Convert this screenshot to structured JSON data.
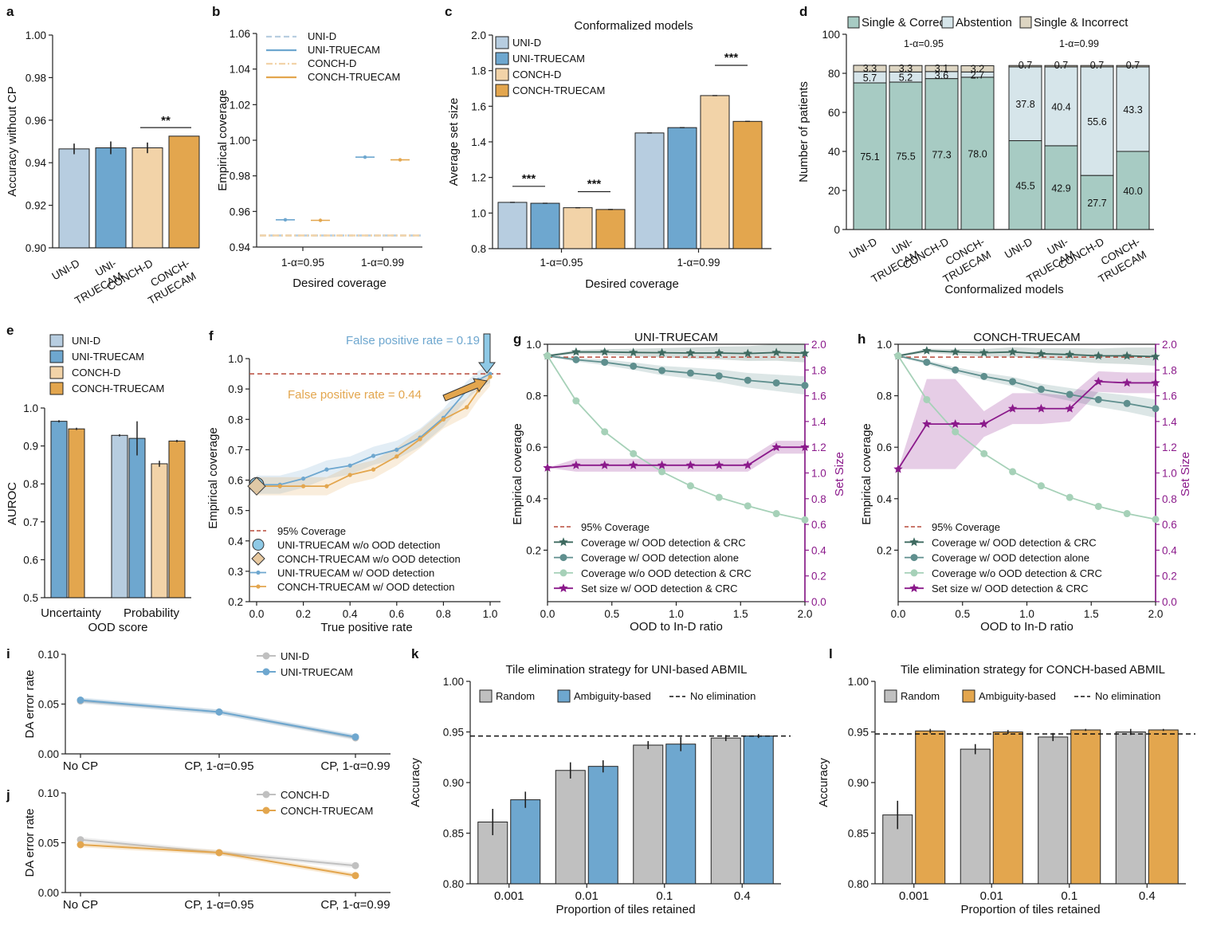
{
  "colors": {
    "uni_d": "#b7cde0",
    "uni_t": "#6ea7cf",
    "conch_d": "#f2d3a8",
    "conch_t": "#e3a64e",
    "sc": "#a7cbc3",
    "abst": "#d6e5ea",
    "si": "#ddd5c2",
    "dark": "#3e6a60",
    "mid": "#5f8f8e",
    "light": "#a6d1b8",
    "purple": "#8b1a8b",
    "red": "#b84a3a",
    "gray": "#c0c0c0",
    "blue": "#6ea7cf",
    "orange": "#e3a64e"
  },
  "chart_data": [
    {
      "id": "a",
      "type": "bar",
      "panel_label": "a",
      "title": "",
      "xlabel": "",
      "ylabel": "Accuracy without CP",
      "ylim": [
        0.9,
        1.0
      ],
      "yticks": [
        "0.90",
        "0.92",
        "0.94",
        "0.96",
        "0.98",
        "1.00"
      ],
      "categories": [
        [
          "UNI-D"
        ],
        [
          "UNI-",
          "TRUECAM"
        ],
        [
          "CONCH-D"
        ],
        [
          "CONCH-",
          "TRUECAM"
        ]
      ],
      "values": [
        0.9465,
        0.947,
        0.947,
        0.9525
      ],
      "errors": [
        0.0025,
        0.003,
        0.0025,
        0.0
      ],
      "bar_colors": [
        "uni_d",
        "uni_t",
        "conch_d",
        "conch_t"
      ],
      "significance": [
        {
          "from": 2,
          "to": 3,
          "label": "**",
          "y": 0.9565
        }
      ]
    },
    {
      "id": "b",
      "type": "dot",
      "panel_label": "b",
      "xlabel": "Desired coverage",
      "ylabel": "Empirical coverage",
      "ylim": [
        0.94,
        1.06
      ],
      "yticks": [
        "0.94",
        "0.96",
        "0.98",
        "1.00",
        "1.02",
        "1.04",
        "1.06"
      ],
      "groups": [
        "1-α=0.95",
        "1-α=0.99"
      ],
      "series": [
        {
          "name": "UNI-D",
          "values": [
            0.9465,
            0.9465
          ],
          "color": "uni_d",
          "style": "dashed"
        },
        {
          "name": "UNI-TRUECAM",
          "values": [
            0.9553,
            0.9905
          ],
          "color": "uni_t",
          "style": "solid"
        },
        {
          "name": "CONCH-D",
          "values": [
            0.9465,
            0.9465
          ],
          "color": "conch_d",
          "style": "dashdot"
        },
        {
          "name": "CONCH-TRUECAM",
          "values": [
            0.955,
            0.989
          ],
          "color": "conch_t",
          "style": "solid"
        }
      ]
    },
    {
      "id": "c",
      "type": "bar",
      "panel_label": "c",
      "title": "Conformalized models",
      "xlabel": "Desired coverage",
      "ylabel": "Average set size",
      "ylim": [
        0.8,
        2.0
      ],
      "yticks": [
        "0.8",
        "1.0",
        "1.2",
        "1.4",
        "1.6",
        "1.8",
        "2.0"
      ],
      "groups": [
        "1-α=0.95",
        "1-α=0.99"
      ],
      "series": [
        {
          "name": "UNI-D",
          "values": [
            1.06,
            1.45
          ],
          "color": "uni_d"
        },
        {
          "name": "UNI-TRUECAM",
          "values": [
            1.055,
            1.48
          ],
          "color": "uni_t"
        },
        {
          "name": "CONCH-D",
          "values": [
            1.03,
            1.66
          ],
          "color": "conch_d"
        },
        {
          "name": "CONCH-TRUECAM",
          "values": [
            1.02,
            1.515
          ],
          "color": "conch_t"
        }
      ],
      "significance": [
        {
          "group": 0,
          "from": 0,
          "to": 1,
          "label": "***",
          "y": 1.15
        },
        {
          "group": 0,
          "from": 2,
          "to": 3,
          "label": "***",
          "y": 1.12
        },
        {
          "group": 1,
          "from": 2,
          "to": 3,
          "label": "***",
          "y": 1.83
        }
      ]
    },
    {
      "id": "d",
      "type": "stacked_bar",
      "panel_label": "d",
      "xlabel": "Conformalized models",
      "ylabel": "Number of patients",
      "ylim": [
        0,
        100
      ],
      "yticks": [
        "0",
        "20",
        "40",
        "60",
        "80",
        "100"
      ],
      "legend": [
        "Single & Correct",
        "Abstention",
        "Single & Incorrect"
      ],
      "groups": [
        {
          "label": "1-α=0.95",
          "bars": [
            {
              "name": [
                "UNI-D"
              ],
              "sc": 75.1,
              "abst": 5.7,
              "si": 3.3
            },
            {
              "name": [
                "UNI-",
                "TRUECAM"
              ],
              "sc": 75.5,
              "abst": 5.2,
              "si": 3.3
            },
            {
              "name": [
                "CONCH-D"
              ],
              "sc": 77.3,
              "abst": 3.6,
              "si": 3.1
            },
            {
              "name": [
                "CONCH-",
                "TRUECAM"
              ],
              "sc": 78.0,
              "abst": 2.7,
              "si": 3.2
            }
          ]
        },
        {
          "label": "1-α=0.99",
          "bars": [
            {
              "name": [
                "UNI-D"
              ],
              "sc": 45.5,
              "abst": 37.8,
              "si": 0.7
            },
            {
              "name": [
                "UNI-",
                "TRUECAM"
              ],
              "sc": 42.9,
              "abst": 40.4,
              "si": 0.7
            },
            {
              "name": [
                "CONCH-D"
              ],
              "sc": 27.7,
              "abst": 55.6,
              "si": 0.7
            },
            {
              "name": [
                "CONCH-",
                "TRUECAM"
              ],
              "sc": 40.0,
              "abst": 43.3,
              "si": 0.7
            }
          ]
        }
      ],
      "value_labels": [
        "75.1",
        "5.7",
        "3.3",
        "75.5",
        "5.2",
        "3.3",
        "77.3",
        "3.6",
        "3.1",
        "78.0",
        "2.7",
        "3.2",
        "45.5",
        "37.8",
        "0.7",
        "42.9",
        "40.4",
        "0.7",
        "27.7",
        "55.6",
        "0.7",
        "40.0",
        "43.3",
        "0.7"
      ]
    },
    {
      "id": "e",
      "type": "bar",
      "panel_label": "e",
      "xlabel": "OOD score",
      "ylabel": "AUROC",
      "ylim": [
        0.5,
        1.0
      ],
      "yticks": [
        "0.5",
        "0.6",
        "0.7",
        "0.8",
        "0.9",
        "1.0"
      ],
      "groups": [
        "Uncertainty",
        "Probability"
      ],
      "legend": [
        "UNI-D",
        "UNI-TRUECAM",
        "CONCH-D",
        "CONCH-TRUECAM"
      ],
      "bars": [
        {
          "group": 0,
          "series": "UNI-TRUECAM",
          "color": "uni_t",
          "value": 0.965,
          "error": 0.003
        },
        {
          "group": 0,
          "series": "CONCH-TRUECAM",
          "color": "conch_t",
          "value": 0.945,
          "error": 0.003
        },
        {
          "group": 1,
          "series": "UNI-D",
          "color": "uni_d",
          "value": 0.928,
          "error": 0.003
        },
        {
          "group": 1,
          "series": "UNI-TRUECAM",
          "color": "uni_t",
          "value": 0.92,
          "error": 0.045
        },
        {
          "group": 1,
          "series": "CONCH-D",
          "color": "conch_d",
          "value": 0.853,
          "error": 0.008
        },
        {
          "group": 1,
          "series": "CONCH-TRUECAM",
          "color": "conch_t",
          "value": 0.913,
          "error": 0.003
        }
      ]
    },
    {
      "id": "f",
      "type": "line",
      "panel_label": "f",
      "xlabel": "True positive rate",
      "ylabel": "Empirical coverage",
      "xlim": [
        0,
        1
      ],
      "ylim": [
        0.2,
        1.0
      ],
      "xticks": [
        "0.0",
        "0.2",
        "0.4",
        "0.6",
        "0.8",
        "1.0"
      ],
      "yticks": [
        "0.2",
        "0.3",
        "0.4",
        "0.5",
        "0.6",
        "0.7",
        "0.8",
        "0.9",
        "1.0"
      ],
      "reference_line": {
        "name": "95% Coverage",
        "y": 0.95
      },
      "annotations": [
        "False positive rate = 0.19",
        "False positive rate = 0.44"
      ],
      "markers": [
        {
          "name": "UNI-TRUECAM w/o OOD detection",
          "x": 0.0,
          "y": 0.585
        },
        {
          "name": "CONCH-TRUECAM w/o OOD detection",
          "x": 0.0,
          "y": 0.58
        }
      ],
      "series": [
        {
          "name": "UNI-TRUECAM w/ OOD detection",
          "color": "blue",
          "x": [
            0,
            0.1,
            0.2,
            0.3,
            0.4,
            0.5,
            0.6,
            0.7,
            0.8,
            0.9,
            0.95,
            1.0
          ],
          "y": [
            0.585,
            0.585,
            0.605,
            0.635,
            0.648,
            0.68,
            0.7,
            0.74,
            0.805,
            0.895,
            0.93,
            0.95
          ]
        },
        {
          "name": "CONCH-TRUECAM w/ OOD detection",
          "color": "orange",
          "x": [
            0,
            0.1,
            0.2,
            0.3,
            0.4,
            0.5,
            0.6,
            0.7,
            0.8,
            0.9,
            0.95,
            1.0
          ],
          "y": [
            0.58,
            0.58,
            0.58,
            0.58,
            0.617,
            0.635,
            0.678,
            0.735,
            0.8,
            0.84,
            0.895,
            0.94
          ]
        }
      ]
    },
    {
      "id": "g",
      "type": "line_dual_axis",
      "panel_label": "g",
      "title": "UNI-TRUECAM",
      "xlabel": "OOD to In-D ratio",
      "ylabel": "Empirical coverage",
      "y2label": "Set Size",
      "xlim": [
        0,
        2
      ],
      "ylim": [
        0.0,
        1.0
      ],
      "y2lim": [
        0.0,
        2.0
      ],
      "xticks": [
        "0.0",
        "0.5",
        "1.0",
        "1.5",
        "2.0"
      ],
      "yticks": [
        "0.2",
        "0.4",
        "0.6",
        "0.8",
        "1.0"
      ],
      "y2ticks": [
        "0.0",
        "0.2",
        "0.4",
        "0.6",
        "0.8",
        "1.0",
        "1.2",
        "1.4",
        "1.6",
        "1.8",
        "2.0"
      ],
      "reference_line": {
        "name": "95% Coverage",
        "y": 0.95
      },
      "x": [
        0,
        0.222,
        0.444,
        0.667,
        0.889,
        1.111,
        1.333,
        1.556,
        1.778,
        2.0
      ],
      "series": [
        {
          "name": "Coverage w/ OOD detection & CRC",
          "color": "dark",
          "marker": "star",
          "y": [
            0.955,
            0.97,
            0.97,
            0.968,
            0.967,
            0.966,
            0.966,
            0.964,
            0.968,
            0.965
          ]
        },
        {
          "name": "Coverage w/ OOD detection alone",
          "color": "mid",
          "marker": "circle",
          "y": [
            0.955,
            0.94,
            0.93,
            0.915,
            0.898,
            0.888,
            0.877,
            0.86,
            0.85,
            0.84
          ]
        },
        {
          "name": "Coverage w/o OOD detection & CRC",
          "color": "light",
          "marker": "circle",
          "y": [
            0.955,
            0.78,
            0.66,
            0.575,
            0.505,
            0.45,
            0.405,
            0.372,
            0.342,
            0.318
          ]
        },
        {
          "name": "Set size w/ OOD detection & CRC",
          "color": "purple",
          "marker": "star",
          "axis": "y2",
          "y": [
            1.04,
            1.06,
            1.06,
            1.06,
            1.06,
            1.06,
            1.06,
            1.06,
            1.2,
            1.2
          ]
        }
      ]
    },
    {
      "id": "h",
      "type": "line_dual_axis",
      "panel_label": "h",
      "title": "CONCH-TRUECAM",
      "xlabel": "OOD to In-D ratio",
      "ylabel": "Empirical coverage",
      "y2label": "Set Size",
      "xlim": [
        0,
        2
      ],
      "ylim": [
        0.0,
        1.0
      ],
      "y2lim": [
        0.0,
        2.0
      ],
      "xticks": [
        "0.0",
        "0.5",
        "1.0",
        "1.5",
        "2.0"
      ],
      "yticks": [
        "0.2",
        "0.4",
        "0.6",
        "0.8",
        "1.0"
      ],
      "y2ticks": [
        "0.0",
        "0.2",
        "0.4",
        "0.6",
        "0.8",
        "1.0",
        "1.2",
        "1.4",
        "1.6",
        "1.8",
        "2.0"
      ],
      "reference_line": {
        "name": "95% Coverage",
        "y": 0.95
      },
      "x": [
        0,
        0.222,
        0.444,
        0.667,
        0.889,
        1.111,
        1.333,
        1.556,
        1.778,
        2.0
      ],
      "series": [
        {
          "name": "Coverage w/ OOD detection & CRC",
          "color": "dark",
          "marker": "star",
          "y": [
            0.955,
            0.975,
            0.97,
            0.967,
            0.97,
            0.963,
            0.96,
            0.955,
            0.955,
            0.952
          ]
        },
        {
          "name": "Coverage w/ OOD detection alone",
          "color": "mid",
          "marker": "circle",
          "y": [
            0.955,
            0.93,
            0.9,
            0.875,
            0.855,
            0.825,
            0.805,
            0.785,
            0.77,
            0.75
          ]
        },
        {
          "name": "Coverage w/o OOD detection & CRC",
          "color": "light",
          "marker": "circle",
          "y": [
            0.955,
            0.785,
            0.66,
            0.575,
            0.505,
            0.45,
            0.405,
            0.37,
            0.342,
            0.32
          ]
        },
        {
          "name": "Set size w/ OOD detection & CRC",
          "color": "purple",
          "marker": "star",
          "axis": "y2",
          "y": [
            1.03,
            1.38,
            1.38,
            1.38,
            1.5,
            1.5,
            1.5,
            1.71,
            1.7,
            1.7
          ]
        }
      ]
    },
    {
      "id": "i",
      "type": "line",
      "panel_label": "i",
      "xlabel": "",
      "ylabel": "DA error rate",
      "ylim": [
        0.0,
        0.1
      ],
      "yticks": [
        "0.00",
        "0.05",
        "0.10"
      ],
      "categories": [
        "No CP",
        "CP, 1-α=0.95",
        "CP, 1-α=0.99"
      ],
      "series": [
        {
          "name": "UNI-D",
          "color": "gray",
          "values": [
            0.053,
            0.042,
            0.016
          ]
        },
        {
          "name": "UNI-TRUECAM",
          "color": "blue",
          "values": [
            0.054,
            0.042,
            0.017
          ]
        }
      ]
    },
    {
      "id": "j",
      "type": "line",
      "panel_label": "j",
      "xlabel": "",
      "ylabel": "DA error rate",
      "ylim": [
        0.0,
        0.1
      ],
      "yticks": [
        "0.00",
        "0.05",
        "0.10"
      ],
      "categories": [
        "No CP",
        "CP, 1-α=0.95",
        "CP, 1-α=0.99"
      ],
      "series": [
        {
          "name": "CONCH-D",
          "color": "gray",
          "values": [
            0.053,
            0.04,
            0.027
          ]
        },
        {
          "name": "CONCH-TRUECAM",
          "color": "orange",
          "values": [
            0.048,
            0.04,
            0.017
          ]
        }
      ]
    },
    {
      "id": "k",
      "type": "bar",
      "panel_label": "k",
      "title": "Tile elimination strategy for UNI-based ABMIL",
      "xlabel": "Proportion of tiles retained",
      "ylabel": "Accuracy",
      "ylim": [
        0.8,
        1.0
      ],
      "yticks": [
        "0.80",
        "0.85",
        "0.90",
        "0.95",
        "1.00"
      ],
      "categories": [
        "0.001",
        "0.01",
        "0.1",
        "0.4"
      ],
      "reference_line": {
        "name": "No elimination",
        "y": 0.946
      },
      "series": [
        {
          "name": "Random",
          "color": "gray",
          "values": [
            0.861,
            0.912,
            0.937,
            0.944
          ],
          "errors": [
            0.013,
            0.008,
            0.004,
            0.003
          ]
        },
        {
          "name": "Ambiguity-based",
          "color": "blue",
          "values": [
            0.883,
            0.916,
            0.938,
            0.946
          ],
          "errors": [
            0.008,
            0.006,
            0.007,
            0.002
          ]
        }
      ]
    },
    {
      "id": "l",
      "type": "bar",
      "panel_label": "l",
      "title": "Tile elimination strategy for CONCH-based ABMIL",
      "xlabel": "Proportion of tiles retained",
      "ylabel": "Accuracy",
      "ylim": [
        0.8,
        1.0
      ],
      "yticks": [
        "0.80",
        "0.85",
        "0.90",
        "0.95",
        "1.00"
      ],
      "categories": [
        "0.001",
        "0.01",
        "0.1",
        "0.4"
      ],
      "reference_line": {
        "name": "No elimination",
        "y": 0.948
      },
      "series": [
        {
          "name": "Random",
          "color": "gray",
          "values": [
            0.868,
            0.933,
            0.945,
            0.95
          ],
          "errors": [
            0.014,
            0.005,
            0.004,
            0.003
          ]
        },
        {
          "name": "Ambiguity-based",
          "color": "orange",
          "values": [
            0.951,
            0.95,
            0.952,
            0.952
          ],
          "errors": [
            0.002,
            0.002,
            0.001,
            0.001
          ]
        }
      ]
    }
  ]
}
